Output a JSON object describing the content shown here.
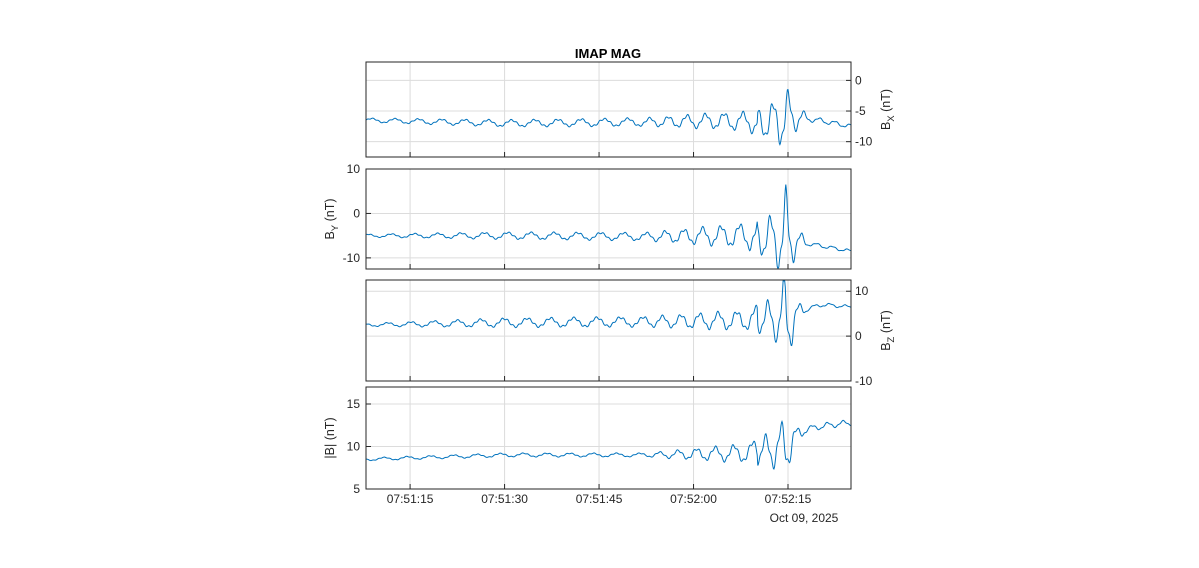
{
  "figure": {
    "title": "IMAP MAG",
    "date_label": "Oct 09, 2025",
    "line_color": "#0072bd"
  },
  "chart_data": [
    {
      "type": "line",
      "title": "IMAP MAG",
      "ylabel_main": "B",
      "ylabel_sub": "X",
      "ylabel_unit": " (nT)",
      "ylabel_side": "right",
      "ylim": [
        -12.5,
        3
      ],
      "yticks": [
        0,
        -5,
        -10
      ],
      "yticklabels": [
        "0",
        "-5",
        "-10"
      ],
      "series": [
        {
          "baseline": [
            [
              0,
              -6.5
            ],
            [
              30,
              -7.0
            ],
            [
              60,
              -6.8
            ],
            [
              75,
              -6.6
            ],
            [
              86,
              -6.8
            ],
            [
              92,
              -6.0
            ],
            [
              97,
              -6.5
            ],
            [
              104,
              -7.5
            ]
          ],
          "oscillation": [
            [
              0,
              0.3
            ],
            [
              30,
              0.5
            ],
            [
              60,
              0.6
            ],
            [
              82,
              1.4
            ],
            [
              88,
              3.0
            ],
            [
              90,
              4.5
            ],
            [
              92,
              2.0
            ],
            [
              95,
              0.4
            ],
            [
              104,
              0.3
            ]
          ]
        }
      ]
    },
    {
      "type": "line",
      "ylabel_main": "B",
      "ylabel_sub": "Y",
      "ylabel_unit": " (nT)",
      "ylabel_side": "left",
      "ylim": [
        -12.5,
        10
      ],
      "yticks": [
        10,
        0,
        -10
      ],
      "yticklabels": [
        "10",
        "0",
        "-10"
      ],
      "series": [
        {
          "baseline": [
            [
              0,
              -5.0
            ],
            [
              30,
              -5.0
            ],
            [
              60,
              -5.2
            ],
            [
              80,
              -5.0
            ],
            [
              86,
              -5.5
            ],
            [
              91,
              -6.0
            ],
            [
              96,
              -7.0
            ],
            [
              104,
              -8.5
            ]
          ],
          "oscillation": [
            [
              0,
              0.3
            ],
            [
              30,
              0.7
            ],
            [
              60,
              0.8
            ],
            [
              82,
              2.5
            ],
            [
              88,
              5.0
            ],
            [
              90,
              10.0
            ],
            [
              92,
              3.0
            ],
            [
              95,
              0.4
            ],
            [
              104,
              0.3
            ]
          ]
        }
      ]
    },
    {
      "type": "line",
      "ylabel_main": "B",
      "ylabel_sub": "Z",
      "ylabel_unit": " (nT)",
      "ylabel_side": "right",
      "ylim": [
        -10,
        12.5
      ],
      "yticks": [
        10,
        0,
        -10
      ],
      "yticklabels": [
        "10",
        "0",
        "-10"
      ],
      "series": [
        {
          "baseline": [
            [
              0,
              2.5
            ],
            [
              30,
              3.0
            ],
            [
              60,
              3.2
            ],
            [
              80,
              3.5
            ],
            [
              86,
              4.0
            ],
            [
              90,
              3.0
            ],
            [
              94,
              6.0
            ],
            [
              98,
              7.0
            ],
            [
              104,
              6.5
            ]
          ],
          "oscillation": [
            [
              0,
              0.3
            ],
            [
              30,
              0.9
            ],
            [
              60,
              1.0
            ],
            [
              82,
              2.0
            ],
            [
              88,
              4.0
            ],
            [
              90,
              10.0
            ],
            [
              92,
              2.5
            ],
            [
              95,
              0.4
            ],
            [
              104,
              0.3
            ]
          ]
        }
      ]
    },
    {
      "type": "line",
      "ylabel_main": "|B| (nT)",
      "ylabel_sub": "",
      "ylabel_unit": "",
      "ylabel_side": "left",
      "ylim": [
        5,
        17
      ],
      "yticks": [
        15,
        10,
        5
      ],
      "yticklabels": [
        "15",
        "10",
        "5"
      ],
      "x": {
        "ticks_seconds_after_07_51_08": [
          7,
          22,
          37,
          52,
          67
        ],
        "ticklabels": [
          "07:51:15",
          "07:51:30",
          "07:51:45",
          "07:52:00",
          "07:52:15"
        ],
        "xlim_seconds": [
          0,
          77
        ]
      },
      "series": [
        {
          "baseline": [
            [
              0,
              8.5
            ],
            [
              30,
              9.0
            ],
            [
              60,
              9.0
            ],
            [
              80,
              9.2
            ],
            [
              86,
              9.5
            ],
            [
              90,
              10.0
            ],
            [
              94,
              12.0
            ],
            [
              99,
              12.5
            ],
            [
              104,
              12.8
            ]
          ],
          "oscillation": [
            [
              0,
              0.15
            ],
            [
              30,
              0.2
            ],
            [
              60,
              0.2
            ],
            [
              82,
              1.0
            ],
            [
              88,
              2.0
            ],
            [
              90,
              3.0
            ],
            [
              92,
              1.0
            ],
            [
              95,
              0.3
            ],
            [
              104,
              0.3
            ]
          ]
        }
      ]
    }
  ]
}
